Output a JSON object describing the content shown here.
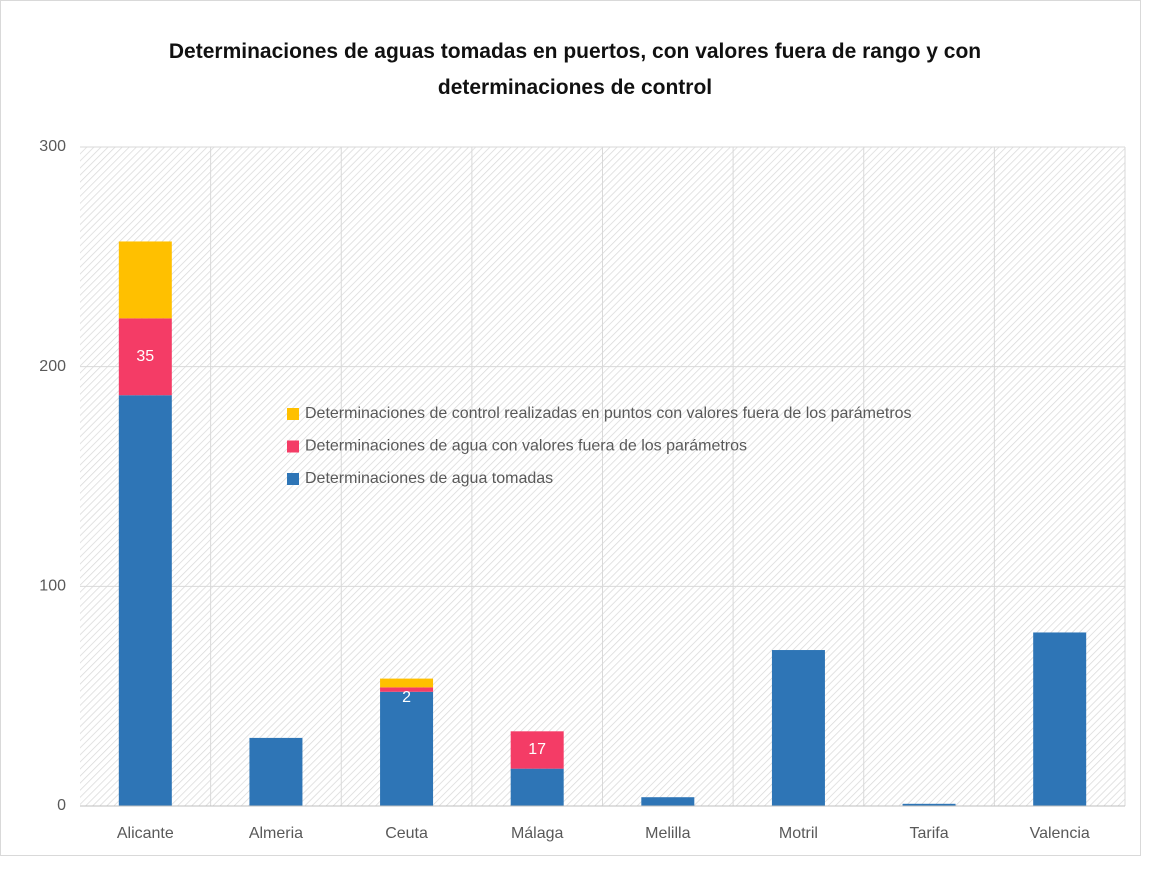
{
  "chart_data": {
    "type": "stacked_bar",
    "title": "Determinaciones de aguas tomadas en puertos, con valores fuera de rango y con determinaciones de control",
    "categories": [
      "Alicante",
      "Almeria",
      "Ceuta",
      "Málaga",
      "Melilla",
      "Motril",
      "Tarifa",
      "Valencia"
    ],
    "series": [
      {
        "name": "Determinaciones de agua tomadas",
        "color": "#2e75b6",
        "values": [
          187,
          31,
          52,
          17,
          4,
          71,
          1,
          79
        ]
      },
      {
        "name": "Determinaciones de agua con valores fuera de los parámetros",
        "color": "#f43c66",
        "values": [
          35,
          0,
          2,
          17,
          0,
          0,
          0,
          0
        ],
        "value_labels": [
          "35",
          null,
          "2",
          "17",
          null,
          null,
          null,
          null
        ]
      },
      {
        "name": "Determinaciones de control realizadas en puntos con valores fuera de los parámetros",
        "color": "#ffc000",
        "values": [
          35,
          0,
          4,
          0,
          0,
          0,
          0,
          0
        ]
      }
    ],
    "ylim": [
      0,
      300
    ],
    "yticks": [
      0,
      100,
      200,
      300
    ],
    "grid": true,
    "legend": "center"
  }
}
